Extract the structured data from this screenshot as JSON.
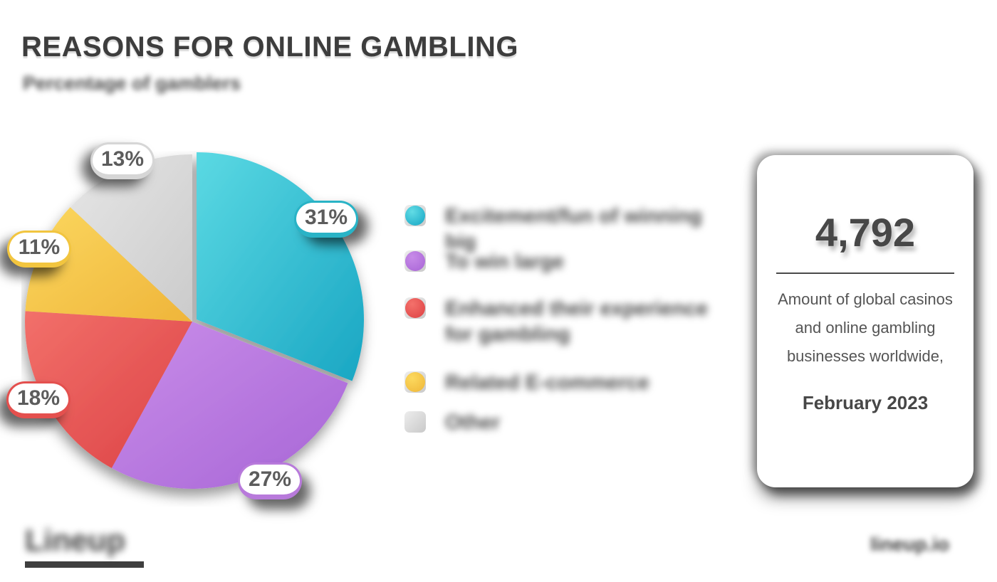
{
  "header": {
    "title": "REASONS FOR ONLINE GAMBLING",
    "subtitle": "Percentage of gamblers"
  },
  "chart_data": {
    "type": "pie",
    "title": "REASONS FOR ONLINE GAMBLING",
    "labels": [
      "Excitement/fun of winning big",
      "To win large",
      "Enhanced their experience for gambling",
      "Related E-commerce",
      "Other"
    ],
    "values": [
      31,
      27,
      18,
      11,
      13
    ],
    "unit": "%",
    "start_angle_deg": 0,
    "direction": "clockwise",
    "legend_position": "right",
    "colors": [
      "#2ebfd2",
      "#b77ade",
      "#e85252",
      "#f7c94b",
      "#d9d9d9"
    ],
    "gradients": [
      [
        "#5bd9e3",
        "#19a6c3"
      ],
      [
        "#c98de9",
        "#a765d6"
      ],
      [
        "#f2706a",
        "#dc4245"
      ],
      [
        "#fbd75f",
        "#efb53a"
      ],
      [
        "#e6e6e6",
        "#cbcbcb"
      ]
    ],
    "slice_ids": [
      "teal",
      "purple",
      "red",
      "yellow",
      "gray"
    ],
    "badges": [
      "31%",
      "27%",
      "18%",
      "11%",
      "13%"
    ]
  },
  "legend": {
    "items": [
      {
        "label": "Excitement/fun of winning big",
        "color": "#2ebfd2"
      },
      {
        "label": "To win large",
        "color": "#b77ade"
      },
      {
        "label": "Enhanced their experience for gambling",
        "color": "#e85252"
      },
      {
        "label": "Related E-commerce",
        "color": "#f7c94b"
      },
      {
        "label": "Other",
        "color": "#d9d9d9"
      }
    ]
  },
  "stat_card": {
    "value": "4,792",
    "description": "Amount of global casinos and online gambling businesses worldwide,",
    "date": "February 2023"
  },
  "footer": {
    "logo_text": "Lineup",
    "site_text": "lineup.io"
  }
}
